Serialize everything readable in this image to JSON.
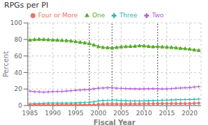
{
  "chart_data": {
    "type": "line",
    "title": "RPGs per PI",
    "x_label": "Fiscal Year",
    "y_label": "Percent",
    "x": [
      1985,
      1986,
      1987,
      1988,
      1989,
      1990,
      1991,
      1992,
      1993,
      1994,
      1995,
      1996,
      1997,
      1998,
      1999,
      2000,
      2001,
      2002,
      2003,
      2004,
      2005,
      2006,
      2007,
      2008,
      2009,
      2010,
      2011,
      2012,
      2013,
      2014,
      2015,
      2016,
      2017,
      2018,
      2019,
      2020,
      2021,
      2022
    ],
    "series": [
      {
        "name": "One",
        "color": "#5aaa30",
        "marker": "triangle",
        "values": [
          79.5,
          80.0,
          80.3,
          80.1,
          79.8,
          79.5,
          79.3,
          79.0,
          78.8,
          78.2,
          77.5,
          76.8,
          76.0,
          75.2,
          73.5,
          71.5,
          70.5,
          70.2,
          70.0,
          70.5,
          71.2,
          71.5,
          71.8,
          72.0,
          72.5,
          72.3,
          71.8,
          71.3,
          71.5,
          71.2,
          70.8,
          70.5,
          70.0,
          69.5,
          69.0,
          68.5,
          67.5,
          67.0
        ]
      },
      {
        "name": "Two",
        "color": "#b05fd4",
        "marker": "plus",
        "values": [
          17.5,
          16.8,
          16.5,
          16.3,
          16.5,
          16.8,
          17.0,
          17.2,
          17.5,
          18.0,
          18.5,
          18.8,
          19.2,
          19.5,
          20.2,
          21.0,
          21.3,
          21.5,
          21.5,
          21.0,
          20.8,
          20.5,
          20.3,
          20.2,
          20.0,
          20.2,
          20.3,
          20.5,
          20.2,
          20.0,
          20.2,
          20.5,
          21.0,
          21.3,
          21.5,
          21.8,
          22.5,
          23.0
        ]
      },
      {
        "name": "Three",
        "color": "#2bb8b0",
        "marker": "plus",
        "values": [
          2.2,
          2.5,
          2.5,
          2.8,
          3.0,
          3.0,
          3.0,
          3.0,
          3.0,
          3.0,
          3.2,
          3.5,
          3.8,
          4.0,
          4.5,
          5.5,
          6.0,
          6.3,
          6.5,
          6.5,
          6.0,
          5.8,
          5.5,
          5.5,
          5.5,
          5.5,
          5.8,
          6.0,
          6.2,
          6.5,
          6.5,
          6.8,
          7.0,
          7.0,
          7.2,
          7.3,
          7.5,
          7.8
        ]
      },
      {
        "name": "Four or More",
        "color": "#f07060",
        "marker": "circle",
        "values": [
          0.8,
          0.8,
          0.8,
          0.8,
          0.8,
          0.8,
          0.8,
          1.0,
          1.0,
          1.0,
          1.0,
          1.0,
          1.0,
          1.0,
          1.0,
          1.5,
          1.8,
          2.0,
          2.0,
          2.0,
          2.0,
          2.0,
          2.0,
          2.0,
          2.0,
          2.2,
          2.2,
          2.3,
          2.5,
          2.5,
          2.5,
          2.5,
          2.5,
          2.5,
          2.5,
          2.5,
          2.8,
          3.0
        ]
      }
    ],
    "xlim": [
      1984.5,
      2022.5
    ],
    "xticks": [
      1985,
      1990,
      1995,
      2000,
      2005,
      2010,
      2015,
      2020
    ],
    "ylim": [
      0,
      100
    ],
    "yticks": [
      0,
      20,
      40,
      60,
      80,
      100
    ],
    "vlines": [
      1998,
      2003,
      2013
    ],
    "grid": true,
    "legend": "top"
  }
}
